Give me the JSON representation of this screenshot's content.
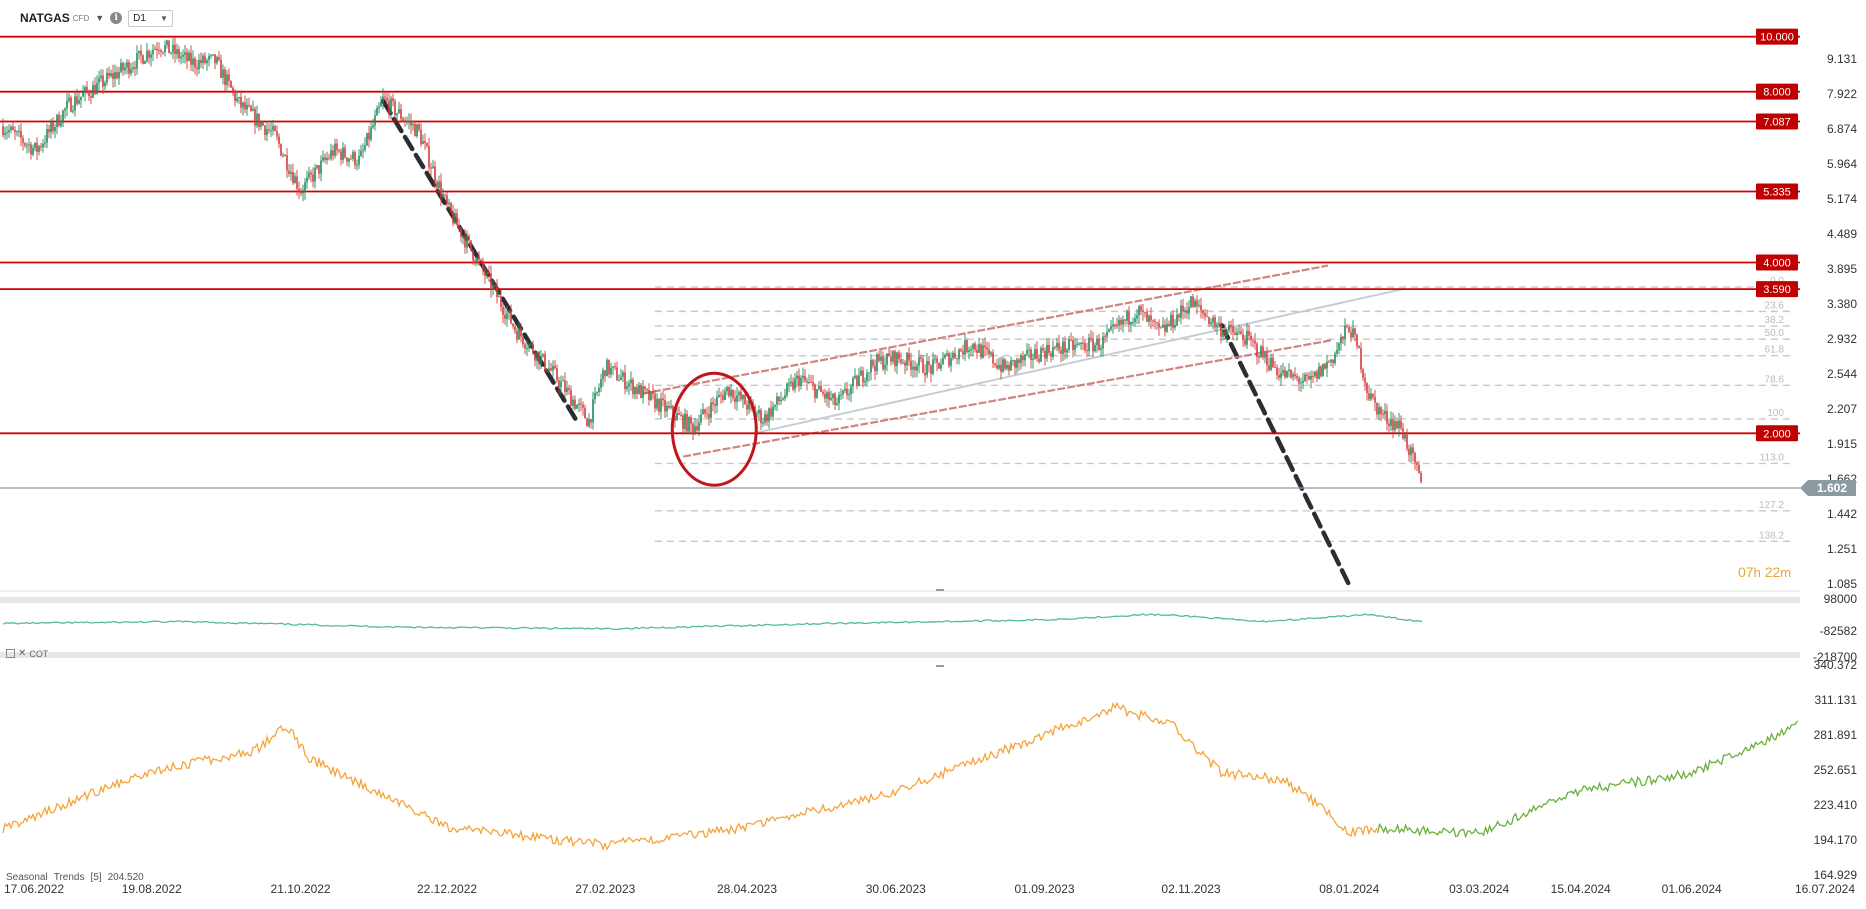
{
  "header": {
    "symbol": "NATGAS",
    "instrument_type": "CFD",
    "timeframe": "D1",
    "dropdown_icon": "caret-down-icon",
    "info_icon": "info-icon"
  },
  "countdown": {
    "hours": "07",
    "h_unit": "h",
    "minutes": "22",
    "m_unit": "m"
  },
  "price_axis_labels": [
    "9.131",
    "7.922",
    "6.874",
    "5.964",
    "5.174",
    "4.489",
    "3.895",
    "3.380",
    "2.932",
    "2.544",
    "2.207",
    "1.915",
    "1.662",
    "1.442",
    "1.251",
    "1.085"
  ],
  "horizontal_levels": [
    {
      "label": "10.000",
      "value": 10.0
    },
    {
      "label": "8.000",
      "value": 8.0
    },
    {
      "label": "7.087",
      "value": 7.087
    },
    {
      "label": "5.335",
      "value": 5.335
    },
    {
      "label": "4.000",
      "value": 4.0
    },
    {
      "label": "3.590",
      "value": 3.59
    },
    {
      "label": "2.000",
      "value": 2.0
    }
  ],
  "last_price": {
    "label": "1.602",
    "value": 1.602
  },
  "fib_levels": [
    {
      "label": "0.0",
      "value": 3.62
    },
    {
      "label": "23.6",
      "value": 3.28
    },
    {
      "label": "38.2",
      "value": 3.09
    },
    {
      "label": "50.0",
      "value": 2.93
    },
    {
      "label": "61.8",
      "value": 2.74
    },
    {
      "label": "78.6",
      "value": 2.43
    },
    {
      "label": "100",
      "value": 2.12
    },
    {
      "label": "113.0",
      "value": 1.77
    },
    {
      "label": "127.2",
      "value": 1.46
    },
    {
      "label": "138.2",
      "value": 1.29
    }
  ],
  "x_axis_labels": [
    "17.06.2022",
    "19.08.2022",
    "21.10.2022",
    "22.12.2022",
    "27.02.2023",
    "28.04.2023",
    "30.06.2023",
    "01.09.2023",
    "02.11.2023",
    "08.01.2024",
    "03.03.2024",
    "15.04.2024",
    "01.06.2024",
    "16.07.2024"
  ],
  "cot_panel": {
    "name": "COT",
    "axis_labels": [
      "98000",
      "-82582",
      "-218700"
    ],
    "icons": [
      "panel-settings-icon",
      "close-icon"
    ]
  },
  "seasonal_panel": {
    "name": "Seasonal",
    "name2": "Trends",
    "param": "[5]",
    "value": "204.520",
    "axis_labels": [
      "340.372",
      "311.131",
      "281.891",
      "252.651",
      "223.410",
      "194.170",
      "164.929"
    ]
  },
  "colors": {
    "bull": "#1e8a5a",
    "bear": "#d63a3a",
    "level_line": "#d00000",
    "level_badge": "#c00000",
    "last_price_badge": "#8c9aa1",
    "cot_line": "#55bb99",
    "seasonal_past": "#f5a43c",
    "seasonal_future": "#6ab03a",
    "trend_dash": "#2a2d33"
  },
  "chart_data": {
    "type": "candlestick",
    "title": "NATGAS CFD D1",
    "price_scale": "log",
    "ylim": [
      1.085,
      10.7
    ],
    "anchors": [
      [
        "17.06.2022",
        6.95
      ],
      [
        "01.07.2022",
        6.3
      ],
      [
        "15.07.2022",
        7.6
      ],
      [
        "29.07.2022",
        8.3
      ],
      [
        "12.08.2022",
        9.05
      ],
      [
        "22.08.2022",
        9.7
      ],
      [
        "05.09.2022",
        9.0
      ],
      [
        "15.09.2022",
        9.05
      ],
      [
        "25.09.2022",
        7.6
      ],
      [
        "10.10.2022",
        6.7
      ],
      [
        "21.10.2022",
        5.35
      ],
      [
        "04.11.2022",
        6.3
      ],
      [
        "15.11.2022",
        6.05
      ],
      [
        "25.11.2022",
        7.75
      ],
      [
        "10.12.2022",
        6.8
      ],
      [
        "22.12.2022",
        5.0
      ],
      [
        "05.01.2023",
        3.95
      ],
      [
        "20.01.2023",
        3.05
      ],
      [
        "05.02.2023",
        2.55
      ],
      [
        "20.02.2023",
        2.1
      ],
      [
        "27.02.2023",
        2.62
      ],
      [
        "15.03.2023",
        2.35
      ],
      [
        "05.04.2023",
        2.05
      ],
      [
        "20.04.2023",
        2.4
      ],
      [
        "05.05.2023",
        2.12
      ],
      [
        "20.05.2023",
        2.5
      ],
      [
        "05.06.2023",
        2.25
      ],
      [
        "20.06.2023",
        2.65
      ],
      [
        "30.06.2023",
        2.72
      ],
      [
        "15.07.2023",
        2.6
      ],
      [
        "01.08.2023",
        2.88
      ],
      [
        "15.08.2023",
        2.6
      ],
      [
        "01.09.2023",
        2.8
      ],
      [
        "25.09.2023",
        2.88
      ],
      [
        "10.10.2023",
        3.3
      ],
      [
        "20.10.2023",
        3.0
      ],
      [
        "02.11.2023",
        3.4
      ],
      [
        "15.11.2023",
        3.05
      ],
      [
        "25.11.2023",
        2.95
      ],
      [
        "10.12.2023",
        2.55
      ],
      [
        "22.12.2023",
        2.45
      ],
      [
        "01.01.2024",
        2.72
      ],
      [
        "08.01.2024",
        3.1
      ],
      [
        "12.01.2024",
        2.78
      ],
      [
        "16.01.2024",
        2.35
      ],
      [
        "22.01.2024",
        2.15
      ],
      [
        "30.01.2024",
        2.05
      ],
      [
        "08.02.2024",
        1.602
      ]
    ],
    "trend_lines": [
      {
        "style": "dashed-thick",
        "from": [
          "25.11.2022",
          7.7
        ],
        "to": [
          "15.02.2023",
          2.1
        ]
      },
      {
        "style": "dashed-thick",
        "from": [
          "15.11.2023",
          3.1
        ],
        "to": [
          "08.01.2024",
          1.08
        ]
      },
      {
        "style": "channel-upper",
        "from": [
          "15.03.2023",
          2.35
        ],
        "to": [
          "30.12.2023",
          3.95
        ]
      },
      {
        "style": "channel-lower",
        "from": [
          "01.04.2023",
          1.82
        ],
        "to": [
          "01.01.2024",
          2.92
        ]
      },
      {
        "style": "channel-mid",
        "from": [
          "01.05.2023",
          2.0
        ],
        "to": [
          "01.02.2024",
          3.6
        ]
      }
    ],
    "annotation_circle": {
      "center": [
        "15.04.2023",
        2.0
      ],
      "label": ""
    },
    "cot": {
      "ylim": [
        -218700,
        98000
      ],
      "points": [
        [
          "17.06.2022",
          -60000
        ],
        [
          "01.09.2022",
          -50000
        ],
        [
          "01.12.2022",
          -80000
        ],
        [
          "01.03.2023",
          -90000
        ],
        [
          "01.06.2023",
          -60000
        ],
        [
          "01.09.2023",
          -40000
        ],
        [
          "15.10.2023",
          -10000
        ],
        [
          "01.11.2023",
          -20000
        ],
        [
          "01.12.2023",
          -50000
        ],
        [
          "01.01.2024",
          -25000
        ],
        [
          "15.01.2024",
          -10000
        ],
        [
          "08.02.2024",
          -50000
        ]
      ]
    },
    "seasonal": {
      "ylim": [
        164.929,
        340.372
      ],
      "points_past": [
        [
          "17.06.2022",
          204
        ],
        [
          "19.08.2022",
          252
        ],
        [
          "01.10.2022",
          268
        ],
        [
          "15.10.2022",
          290
        ],
        [
          "25.10.2022",
          262
        ],
        [
          "22.12.2022",
          205
        ],
        [
          "27.02.2023",
          190
        ],
        [
          "28.04.2023",
          205
        ],
        [
          "30.06.2023",
          235
        ],
        [
          "01.09.2023",
          282
        ],
        [
          "01.10.2023",
          305
        ],
        [
          "25.10.2023",
          290
        ],
        [
          "15.11.2023",
          250
        ],
        [
          "10.12.2023",
          245
        ],
        [
          "22.12.2023",
          230
        ],
        [
          "08.01.2024",
          200
        ],
        [
          "20.01.2024",
          204
        ]
      ],
      "points_future": [
        [
          "20.01.2024",
          204
        ],
        [
          "03.03.2024",
          200
        ],
        [
          "15.04.2024",
          235
        ],
        [
          "01.06.2024",
          250
        ],
        [
          "16.07.2024",
          290
        ]
      ]
    }
  }
}
